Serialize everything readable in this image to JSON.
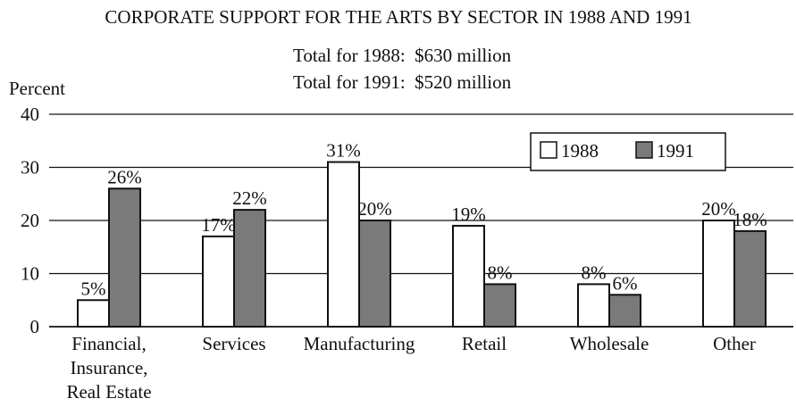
{
  "chart_data": {
    "type": "bar",
    "title": "CORPORATE SUPPORT FOR THE ARTS BY SECTOR IN 1988 AND 1991",
    "subtitle_lines": [
      "Total for 1988:  $630 million",
      "Total for 1991:  $520 million"
    ],
    "ylabel": "Percent",
    "xlabel": "",
    "ylim": [
      0,
      40
    ],
    "yticks": [
      0,
      10,
      20,
      30,
      40
    ],
    "grid": true,
    "legend_position": "top-right",
    "categories": [
      [
        "Financial,",
        "Insurance,",
        "Real Estate"
      ],
      [
        "Services"
      ],
      [
        "Manufacturing"
      ],
      [
        "Retail"
      ],
      [
        "Wholesale"
      ],
      [
        "Other"
      ]
    ],
    "series": [
      {
        "name": "1988",
        "color": "#ffffff",
        "values": [
          5,
          17,
          31,
          19,
          8,
          20
        ],
        "labels": [
          "5%",
          "17%",
          "31%",
          "19%",
          "8%",
          "20%"
        ]
      },
      {
        "name": "1991",
        "color": "#7a7a7a",
        "values": [
          26,
          22,
          20,
          8,
          6,
          18
        ],
        "labels": [
          "26%",
          "22%",
          "20%",
          "8%",
          "6%",
          "18%"
        ]
      }
    ]
  }
}
